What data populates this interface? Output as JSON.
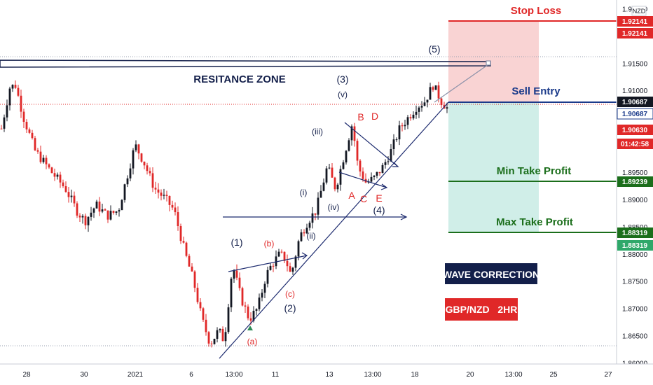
{
  "chart_data": {
    "type": "candlestick",
    "title": "",
    "symbol": "GBP/NZD",
    "timeframe": "2HR",
    "currency": "NZD",
    "x_ticks": [
      "28",
      "30",
      "2021",
      "6",
      "13:00",
      "11",
      "13",
      "13:00",
      "18",
      "20",
      "13:00",
      "25",
      "27"
    ],
    "y_ticks": [
      "1.92500",
      "1.91500",
      "1.91000",
      "1.90000",
      "1.89500",
      "1.89000",
      "1.88500",
      "1.88000",
      "1.87500",
      "1.87000",
      "1.86500",
      "1.86000"
    ],
    "ylim": [
      1.8598,
      1.9266
    ],
    "price_path": [
      [
        1.903,
        0
      ],
      [
        1.9105,
        3
      ],
      [
        1.911,
        5
      ],
      [
        1.905,
        8
      ],
      [
        1.899,
        12
      ],
      [
        1.895,
        18
      ],
      [
        1.892,
        23
      ],
      [
        1.888,
        27
      ],
      [
        1.886,
        30
      ],
      [
        1.889,
        34
      ],
      [
        1.887,
        38
      ],
      [
        1.888,
        42
      ],
      [
        1.896,
        46
      ],
      [
        1.9,
        48
      ],
      [
        1.897,
        51
      ],
      [
        1.892,
        55
      ],
      [
        1.89,
        59
      ],
      [
        1.888,
        62
      ],
      [
        1.88,
        66
      ],
      [
        1.875,
        69
      ],
      [
        1.868,
        72
      ],
      [
        1.8635,
        75
      ],
      [
        1.866,
        78
      ],
      [
        1.864,
        80
      ],
      [
        1.878,
        83
      ],
      [
        1.872,
        86
      ],
      [
        1.868,
        89
      ],
      [
        1.87,
        92
      ],
      [
        1.876,
        95
      ],
      [
        1.878,
        97
      ],
      [
        1.88,
        100
      ],
      [
        1.879,
        102
      ],
      [
        1.876,
        104
      ],
      [
        1.883,
        107
      ],
      [
        1.886,
        110
      ],
      [
        1.888,
        113
      ],
      [
        1.896,
        117
      ],
      [
        1.892,
        120
      ],
      [
        1.898,
        123
      ],
      [
        1.904,
        126
      ],
      [
        1.896,
        128
      ],
      [
        1.893,
        131
      ],
      [
        1.894,
        134
      ],
      [
        1.896,
        137
      ],
      [
        1.899,
        140
      ],
      [
        1.903,
        143
      ],
      [
        1.905,
        146
      ],
      [
        1.907,
        149
      ],
      [
        1.908,
        152
      ],
      [
        1.911,
        155
      ],
      [
        1.908,
        158
      ],
      [
        1.9068,
        160
      ]
    ],
    "price_labels": {
      "stop_loss": {
        "label": "1.92141",
        "value": 1.92141
      },
      "sell_entry": {
        "label": "1.90687",
        "value": 1.90687
      },
      "last": {
        "label": "1.90630",
        "value": 1.9063
      },
      "countdown": "01:42:58",
      "min_tp": {
        "label": "1.89239",
        "value": 1.89239
      },
      "max_tp": {
        "label": "1.88319",
        "value": 1.88319
      }
    },
    "annotations": {
      "resistance": "RESITANCE ZONE",
      "stop_loss": "Stop Loss",
      "sell_entry": "Sell Entry",
      "min_tp": "Min Take Profit",
      "max_tp": "Max Take Profit",
      "wave_correction": "WAVE CORRECTION",
      "pair_tf": "GBP/NZD   2HR"
    },
    "wave_labels": {
      "w1": "(1)",
      "w2": "(2)",
      "w3": "(3)",
      "w4": "(4)",
      "w5": "(5)",
      "a": "(a)",
      "b": "(b)",
      "c": "(c)",
      "i": "(i)",
      "ii": "(ii)",
      "iii": "(iii)",
      "iv": "(iv)",
      "v": "(v)",
      "A": "A",
      "B": "B",
      "C": "C",
      "D": "D",
      "E": "E"
    },
    "colors": {
      "up": "#131722",
      "down": "#e02828",
      "stop": "#e02828",
      "entry": "#1a3a8a",
      "tp": "#1b6e1b",
      "loss_zone": "#f8c8c8",
      "profit_zone": "#c8ebe4",
      "last_price": "#e02828"
    }
  }
}
